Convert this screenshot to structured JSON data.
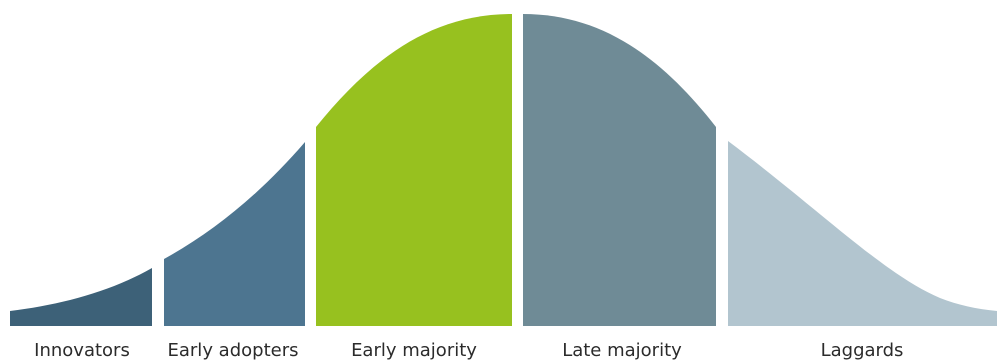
{
  "segments": [
    {
      "key": "innovators",
      "label": "Innovators",
      "color": "#3d6178"
    },
    {
      "key": "early-adopters",
      "label": "Early adopters",
      "color": "#4d7590"
    },
    {
      "key": "early-majority",
      "label": "Early majority",
      "color": "#97c11f"
    },
    {
      "key": "late-majority",
      "label": "Late majority",
      "color": "#6f8b96"
    },
    {
      "key": "laggards",
      "label": "Laggards",
      "color": "#b2c5cf"
    }
  ]
}
